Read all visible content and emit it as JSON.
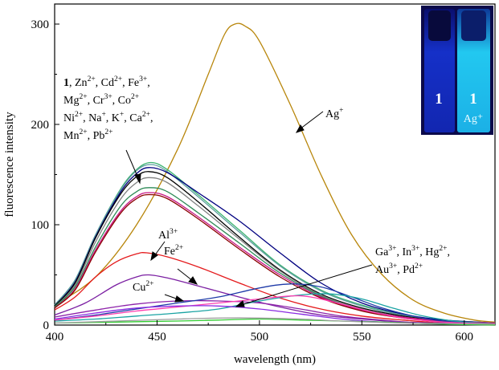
{
  "chart_data": {
    "type": "line",
    "title": "",
    "xlabel": "wavelength (nm)",
    "ylabel": "fluorescence intensity",
    "xlim": [
      400,
      615
    ],
    "ylim": [
      0,
      320
    ],
    "xticks": [
      "400",
      "450",
      "500",
      "550",
      "600"
    ],
    "yticks": [
      "0",
      "100",
      "200",
      "300"
    ],
    "grid": false,
    "series": [
      {
        "color": "#b8860b",
        "points": [
          [
            400,
            20
          ],
          [
            420,
            48
          ],
          [
            440,
            100
          ],
          [
            460,
            175
          ],
          [
            475,
            250
          ],
          [
            483,
            290
          ],
          [
            488,
            300
          ],
          [
            493,
            298
          ],
          [
            500,
            283
          ],
          [
            515,
            220
          ],
          [
            530,
            150
          ],
          [
            545,
            90
          ],
          [
            560,
            50
          ],
          [
            575,
            25
          ],
          [
            590,
            12
          ],
          [
            605,
            5
          ],
          [
            615,
            3
          ]
        ]
      },
      {
        "color": "#3cb371",
        "points": [
          [
            400,
            20
          ],
          [
            410,
            45
          ],
          [
            420,
            90
          ],
          [
            432,
            135
          ],
          [
            440,
            155
          ],
          [
            447,
            162
          ],
          [
            455,
            155
          ],
          [
            470,
            130
          ],
          [
            490,
            95
          ],
          [
            510,
            60
          ],
          [
            530,
            35
          ],
          [
            550,
            20
          ],
          [
            570,
            10
          ],
          [
            590,
            5
          ],
          [
            615,
            2
          ]
        ]
      },
      {
        "color": "#5f9ea0",
        "points": [
          [
            400,
            20
          ],
          [
            410,
            45
          ],
          [
            420,
            90
          ],
          [
            432,
            134
          ],
          [
            440,
            154
          ],
          [
            447,
            160
          ],
          [
            455,
            153
          ],
          [
            470,
            128
          ],
          [
            490,
            93
          ],
          [
            510,
            59
          ],
          [
            530,
            34
          ],
          [
            550,
            19
          ],
          [
            570,
            10
          ],
          [
            590,
            5
          ],
          [
            615,
            2
          ]
        ]
      },
      {
        "color": "#000080",
        "points": [
          [
            400,
            19
          ],
          [
            410,
            43
          ],
          [
            420,
            88
          ],
          [
            432,
            132
          ],
          [
            440,
            151
          ],
          [
            446,
            157
          ],
          [
            455,
            152
          ],
          [
            470,
            132
          ],
          [
            490,
            104
          ],
          [
            510,
            72
          ],
          [
            530,
            42
          ],
          [
            550,
            22
          ],
          [
            570,
            11
          ],
          [
            590,
            5
          ],
          [
            615,
            2
          ]
        ]
      },
      {
        "color": "#000000",
        "points": [
          [
            400,
            19
          ],
          [
            410,
            42
          ],
          [
            420,
            87
          ],
          [
            432,
            130
          ],
          [
            440,
            148
          ],
          [
            446,
            153
          ],
          [
            455,
            147
          ],
          [
            470,
            123
          ],
          [
            490,
            88
          ],
          [
            510,
            55
          ],
          [
            530,
            31
          ],
          [
            550,
            17
          ],
          [
            570,
            9
          ],
          [
            590,
            4
          ],
          [
            615,
            2
          ]
        ]
      },
      {
        "color": "#808080",
        "points": [
          [
            400,
            18
          ],
          [
            410,
            40
          ],
          [
            420,
            83
          ],
          [
            432,
            125
          ],
          [
            440,
            142
          ],
          [
            446,
            147
          ],
          [
            455,
            142
          ],
          [
            470,
            119
          ],
          [
            490,
            86
          ],
          [
            510,
            54
          ],
          [
            530,
            30
          ],
          [
            550,
            16
          ],
          [
            570,
            8
          ],
          [
            590,
            4
          ],
          [
            615,
            2
          ]
        ]
      },
      {
        "color": "#2e8b57",
        "points": [
          [
            400,
            18
          ],
          [
            410,
            38
          ],
          [
            420,
            78
          ],
          [
            432,
            118
          ],
          [
            440,
            133
          ],
          [
            446,
            137
          ],
          [
            455,
            133
          ],
          [
            470,
            112
          ],
          [
            490,
            82
          ],
          [
            510,
            52
          ],
          [
            530,
            29
          ],
          [
            550,
            15
          ],
          [
            570,
            8
          ],
          [
            590,
            4
          ],
          [
            615,
            2
          ]
        ]
      },
      {
        "color": "#c71585",
        "points": [
          [
            400,
            17
          ],
          [
            410,
            36
          ],
          [
            420,
            75
          ],
          [
            432,
            113
          ],
          [
            440,
            128
          ],
          [
            446,
            132
          ],
          [
            455,
            128
          ],
          [
            470,
            108
          ],
          [
            490,
            78
          ],
          [
            510,
            50
          ],
          [
            530,
            28
          ],
          [
            550,
            15
          ],
          [
            570,
            8
          ],
          [
            590,
            4
          ],
          [
            615,
            2
          ]
        ]
      },
      {
        "color": "#8b0000",
        "points": [
          [
            400,
            17
          ],
          [
            410,
            35
          ],
          [
            420,
            73
          ],
          [
            432,
            111
          ],
          [
            440,
            126
          ],
          [
            446,
            130
          ],
          [
            455,
            126
          ],
          [
            470,
            106
          ],
          [
            490,
            76
          ],
          [
            510,
            48
          ],
          [
            530,
            27
          ],
          [
            550,
            14
          ],
          [
            570,
            7
          ],
          [
            590,
            3
          ],
          [
            615,
            1
          ]
        ]
      },
      {
        "color": "#e41a1c",
        "points": [
          [
            400,
            15
          ],
          [
            410,
            28
          ],
          [
            420,
            48
          ],
          [
            430,
            63
          ],
          [
            440,
            71
          ],
          [
            445,
            72
          ],
          [
            455,
            68
          ],
          [
            470,
            58
          ],
          [
            490,
            42
          ],
          [
            510,
            27
          ],
          [
            530,
            16
          ],
          [
            550,
            9
          ],
          [
            570,
            5
          ],
          [
            590,
            2
          ],
          [
            615,
            1
          ]
        ]
      },
      {
        "color": "#7b1fa2",
        "points": [
          [
            400,
            10
          ],
          [
            415,
            22
          ],
          [
            430,
            40
          ],
          [
            440,
            48
          ],
          [
            446,
            50
          ],
          [
            455,
            47
          ],
          [
            470,
            39
          ],
          [
            490,
            28
          ],
          [
            510,
            18
          ],
          [
            530,
            10
          ],
          [
            550,
            6
          ],
          [
            570,
            3
          ],
          [
            590,
            2
          ],
          [
            615,
            1
          ]
        ]
      },
      {
        "color": "#8e24aa",
        "points": [
          [
            400,
            8
          ],
          [
            420,
            15
          ],
          [
            440,
            21
          ],
          [
            460,
            24
          ],
          [
            480,
            24
          ],
          [
            500,
            22
          ],
          [
            520,
            16
          ],
          [
            540,
            9
          ],
          [
            560,
            5
          ],
          [
            580,
            2
          ],
          [
            615,
            1
          ]
        ]
      },
      {
        "color": "#1e3aa8",
        "points": [
          [
            400,
            5
          ],
          [
            420,
            10
          ],
          [
            440,
            16
          ],
          [
            460,
            22
          ],
          [
            480,
            28
          ],
          [
            500,
            37
          ],
          [
            515,
            41
          ],
          [
            530,
            38
          ],
          [
            545,
            28
          ],
          [
            560,
            17
          ],
          [
            575,
            9
          ],
          [
            590,
            4
          ],
          [
            615,
            1
          ]
        ]
      },
      {
        "color": "#1aa3a3",
        "points": [
          [
            400,
            4
          ],
          [
            420,
            6
          ],
          [
            440,
            9
          ],
          [
            460,
            12
          ],
          [
            480,
            16
          ],
          [
            500,
            24
          ],
          [
            520,
            30
          ],
          [
            535,
            31
          ],
          [
            550,
            26
          ],
          [
            565,
            17
          ],
          [
            580,
            9
          ],
          [
            595,
            4
          ],
          [
            615,
            1
          ]
        ]
      },
      {
        "color": "#ff3db0",
        "points": [
          [
            400,
            5
          ],
          [
            420,
            9
          ],
          [
            440,
            14
          ],
          [
            460,
            18
          ],
          [
            480,
            22
          ],
          [
            500,
            26
          ],
          [
            515,
            29
          ],
          [
            525,
            28
          ],
          [
            540,
            21
          ],
          [
            555,
            13
          ],
          [
            570,
            7
          ],
          [
            590,
            3
          ],
          [
            615,
            1
          ]
        ]
      },
      {
        "color": "#8a2be2",
        "points": [
          [
            400,
            6
          ],
          [
            420,
            12
          ],
          [
            440,
            17
          ],
          [
            460,
            19
          ],
          [
            480,
            19
          ],
          [
            500,
            16
          ],
          [
            520,
            11
          ],
          [
            540,
            6
          ],
          [
            560,
            3
          ],
          [
            590,
            1
          ],
          [
            615,
            0
          ]
        ]
      },
      {
        "color": "#32cd32",
        "points": [
          [
            400,
            2
          ],
          [
            430,
            3
          ],
          [
            460,
            4
          ],
          [
            480,
            5
          ],
          [
            500,
            6
          ],
          [
            520,
            5
          ],
          [
            540,
            4
          ],
          [
            560,
            3
          ],
          [
            590,
            1
          ],
          [
            615,
            0
          ]
        ]
      },
      {
        "color": "#9e9e9e",
        "points": [
          [
            400,
            2
          ],
          [
            430,
            4
          ],
          [
            460,
            6
          ],
          [
            480,
            7
          ],
          [
            500,
            7
          ],
          [
            520,
            6
          ],
          [
            540,
            4
          ],
          [
            570,
            2
          ],
          [
            615,
            1
          ]
        ]
      }
    ]
  },
  "inset": {
    "label_left": "1",
    "label_right": "1",
    "label_right_sub": "Ag⁺"
  },
  "annotations": {
    "group_lines": [
      [
        {
          "t": "1",
          "b": true
        },
        {
          "t": ", Zn"
        },
        {
          "t": "2+",
          "sup": true
        },
        {
          "t": ", Cd"
        },
        {
          "t": "2+",
          "sup": true
        },
        {
          "t": ", Fe"
        },
        {
          "t": "3+",
          "sup": true
        },
        {
          "t": ","
        }
      ],
      [
        {
          "t": "Mg"
        },
        {
          "t": "2+",
          "sup": true
        },
        {
          "t": ", Cr"
        },
        {
          "t": "3+",
          "sup": true
        },
        {
          "t": ", Co"
        },
        {
          "t": "2+",
          "sup": true
        }
      ],
      [
        {
          "t": "Ni"
        },
        {
          "t": "2+",
          "sup": true
        },
        {
          "t": ", Na"
        },
        {
          "t": "+",
          "sup": true
        },
        {
          "t": ", K"
        },
        {
          "t": "+",
          "sup": true
        },
        {
          "t": ", Ca"
        },
        {
          "t": "2+",
          "sup": true
        },
        {
          "t": ","
        }
      ],
      [
        {
          "t": "Mn"
        },
        {
          "t": "2+",
          "sup": true
        },
        {
          "t": ", Pb"
        },
        {
          "t": "2+",
          "sup": true
        }
      ]
    ],
    "ag": [
      {
        "t": "Ag"
      },
      {
        "t": "+",
        "sup": true
      }
    ],
    "al": [
      {
        "t": "Al"
      },
      {
        "t": "3+",
        "sup": true
      }
    ],
    "fe": [
      {
        "t": "Fe"
      },
      {
        "t": "2+",
        "sup": true
      }
    ],
    "cu": [
      {
        "t": "Cu"
      },
      {
        "t": "2+",
        "sup": true
      }
    ],
    "ga_lines": [
      [
        {
          "t": "Ga"
        },
        {
          "t": "3+",
          "sup": true
        },
        {
          "t": ", In"
        },
        {
          "t": "3+",
          "sup": true
        },
        {
          "t": ", Hg"
        },
        {
          "t": "2+",
          "sup": true
        },
        {
          "t": ","
        }
      ],
      [
        {
          "t": "Au"
        },
        {
          "t": "3+",
          "sup": true
        },
        {
          "t": ", Pd"
        },
        {
          "t": "2+",
          "sup": true
        }
      ]
    ]
  }
}
